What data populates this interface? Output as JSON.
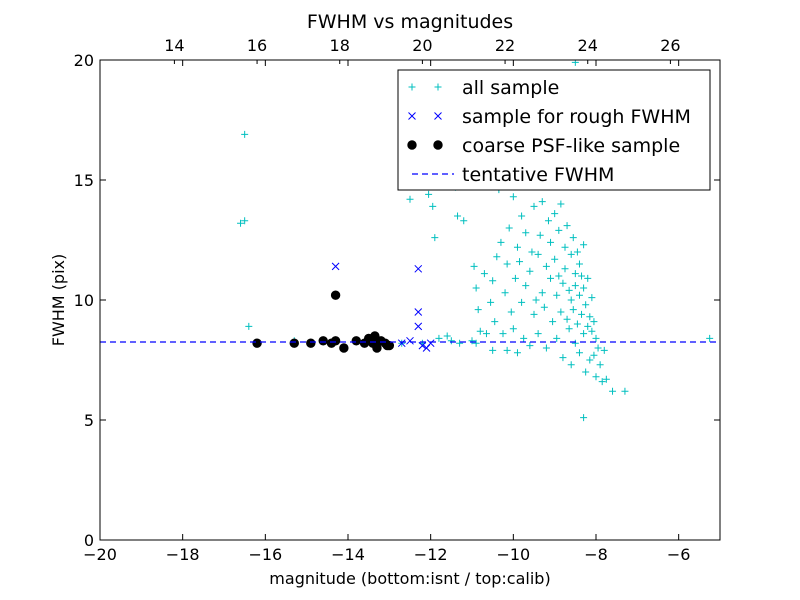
{
  "chart_data": {
    "type": "scatter",
    "title": "FWHM vs magnitudes",
    "xlabel": "magnitude (bottom:isnt / top:calib)",
    "ylabel": "FWHM (pix)",
    "xlim": [
      -20,
      -5
    ],
    "ylim": [
      0,
      20
    ],
    "x_ticks": [
      -20,
      -18,
      -16,
      -14,
      -12,
      -10,
      -8,
      -6
    ],
    "x_tick_labels": [
      "−20",
      "−18",
      "−16",
      "−14",
      "−12",
      "−10",
      "−8",
      "−6"
    ],
    "y_ticks": [
      0,
      5,
      10,
      15,
      20
    ],
    "y_tick_labels": [
      "0",
      "5",
      "10",
      "15",
      "20"
    ],
    "top_axis": {
      "ticks": [
        14,
        16,
        18,
        20,
        22,
        24,
        26
      ],
      "tick_labels": [
        "14",
        "16",
        "18",
        "20",
        "22",
        "24",
        "26"
      ],
      "offset": 32.2
    },
    "grid": false,
    "legend_position": "top-right",
    "series": [
      {
        "name": "all sample",
        "marker": "plus",
        "color": "#00bfbf",
        "points": [
          [
            -16.5,
            16.9
          ],
          [
            -16.6,
            13.2
          ],
          [
            -16.5,
            13.3
          ],
          [
            -16.4,
            8.9
          ],
          [
            -15.3,
            8.3
          ],
          [
            -14.6,
            8.3
          ],
          [
            -13.2,
            8.3
          ],
          [
            -12.7,
            8.2
          ],
          [
            -12.5,
            14.2
          ],
          [
            -12.3,
            14.9
          ],
          [
            -12.2,
            15.0
          ],
          [
            -12.05,
            14.4
          ],
          [
            -11.95,
            13.9
          ],
          [
            -11.9,
            12.6
          ],
          [
            -11.8,
            15.3
          ],
          [
            -11.6,
            8.5
          ],
          [
            -11.4,
            14.7
          ],
          [
            -11.35,
            13.5
          ],
          [
            -11.2,
            13.3
          ],
          [
            -11.15,
            15.7
          ],
          [
            -11.0,
            8.3
          ],
          [
            -10.95,
            11.4
          ],
          [
            -10.9,
            10.5
          ],
          [
            -10.85,
            9.6
          ],
          [
            -10.8,
            8.7
          ],
          [
            -10.7,
            11.1
          ],
          [
            -10.65,
            8.6
          ],
          [
            -10.55,
            9.9
          ],
          [
            -10.5,
            10.8
          ],
          [
            -10.5,
            7.9
          ],
          [
            -10.45,
            9.1
          ],
          [
            -10.4,
            11.8
          ],
          [
            -10.35,
            14.6
          ],
          [
            -10.3,
            12.4
          ],
          [
            -10.25,
            8.6
          ],
          [
            -10.2,
            10.3
          ],
          [
            -10.15,
            11.5
          ],
          [
            -10.15,
            7.9
          ],
          [
            -10.1,
            13.0
          ],
          [
            -10.05,
            9.5
          ],
          [
            -10.0,
            14.3
          ],
          [
            -10.0,
            8.8
          ],
          [
            -9.95,
            10.9
          ],
          [
            -9.9,
            12.2
          ],
          [
            -9.9,
            7.8
          ],
          [
            -9.85,
            11.6
          ],
          [
            -9.8,
            13.5
          ],
          [
            -9.8,
            9.9
          ],
          [
            -9.75,
            8.4
          ],
          [
            -9.7,
            12.8
          ],
          [
            -9.7,
            10.6
          ],
          [
            -9.65,
            14.8
          ],
          [
            -9.6,
            11.2
          ],
          [
            -9.6,
            8.1
          ],
          [
            -9.55,
            12.0
          ],
          [
            -9.5,
            9.4
          ],
          [
            -9.5,
            13.9
          ],
          [
            -9.45,
            10.0
          ],
          [
            -9.4,
            11.9
          ],
          [
            -9.4,
            8.6
          ],
          [
            -9.35,
            12.7
          ],
          [
            -9.3,
            10.3
          ],
          [
            -9.3,
            14.1
          ],
          [
            -9.25,
            9.7
          ],
          [
            -9.2,
            11.4
          ],
          [
            -9.2,
            8.0
          ],
          [
            -9.15,
            13.3
          ],
          [
            -9.1,
            10.9
          ],
          [
            -9.1,
            12.4
          ],
          [
            -9.05,
            9.1
          ],
          [
            -9.0,
            11.7
          ],
          [
            -9.0,
            13.6
          ],
          [
            -8.95,
            10.2
          ],
          [
            -8.95,
            8.4
          ],
          [
            -8.9,
            12.9
          ],
          [
            -8.9,
            11.0
          ],
          [
            -8.85,
            9.5
          ],
          [
            -8.85,
            14.0
          ],
          [
            -8.8,
            10.7
          ],
          [
            -8.8,
            7.6
          ],
          [
            -8.75,
            12.2
          ],
          [
            -8.75,
            11.3
          ],
          [
            -8.7,
            9.2
          ],
          [
            -8.7,
            13.1
          ],
          [
            -8.65,
            10.4
          ],
          [
            -8.65,
            8.8
          ],
          [
            -8.6,
            11.9
          ],
          [
            -8.6,
            10.0
          ],
          [
            -8.6,
            7.3
          ],
          [
            -8.55,
            12.6
          ],
          [
            -8.55,
            9.6
          ],
          [
            -8.5,
            11.1
          ],
          [
            -8.5,
            10.6
          ],
          [
            -8.5,
            8.2
          ],
          [
            -8.45,
            12.0
          ],
          [
            -8.45,
            9.0
          ],
          [
            -8.4,
            11.5
          ],
          [
            -8.4,
            10.2
          ],
          [
            -8.4,
            7.8
          ],
          [
            -8.35,
            9.4
          ],
          [
            -8.35,
            11.0
          ],
          [
            -8.3,
            10.5
          ],
          [
            -8.3,
            8.6
          ],
          [
            -8.3,
            12.3
          ],
          [
            -8.25,
            9.8
          ],
          [
            -8.25,
            7.0
          ],
          [
            -8.2,
            10.9
          ],
          [
            -8.2,
            8.9
          ],
          [
            -8.15,
            9.3
          ],
          [
            -8.15,
            7.5
          ],
          [
            -8.1,
            8.7
          ],
          [
            -8.1,
            10.1
          ],
          [
            -8.05,
            9.1
          ],
          [
            -8.05,
            7.7
          ],
          [
            -8.0,
            8.4
          ],
          [
            -8.0,
            6.8
          ],
          [
            -7.95,
            8.0
          ],
          [
            -7.9,
            7.3
          ],
          [
            -7.85,
            6.6
          ],
          [
            -7.8,
            7.9
          ],
          [
            -7.75,
            6.7
          ],
          [
            -7.6,
            6.2
          ],
          [
            -7.3,
            6.2
          ],
          [
            -8.3,
            5.1
          ],
          [
            -8.5,
            19.9
          ],
          [
            -5.25,
            8.4
          ],
          [
            -12.2,
            8.2
          ],
          [
            -11.8,
            8.4
          ],
          [
            -11.5,
            8.3
          ],
          [
            -11.3,
            8.2
          ],
          [
            -10.9,
            8.2
          ]
        ]
      },
      {
        "name": "sample for rough FWHM",
        "marker": "x",
        "color": "#0000ff",
        "points": [
          [
            -14.3,
            11.4
          ],
          [
            -12.3,
            11.3
          ],
          [
            -12.3,
            9.5
          ],
          [
            -12.3,
            8.9
          ],
          [
            -12.5,
            8.3
          ],
          [
            -12.2,
            8.1
          ],
          [
            -12.1,
            8.0
          ],
          [
            -12.0,
            8.2
          ],
          [
            -12.7,
            8.2
          ]
        ]
      },
      {
        "name": "coarse PSF-like sample",
        "marker": "circle",
        "color": "#000000",
        "points": [
          [
            -16.2,
            8.2
          ],
          [
            -15.3,
            8.2
          ],
          [
            -14.9,
            8.2
          ],
          [
            -14.6,
            8.3
          ],
          [
            -14.4,
            8.2
          ],
          [
            -14.3,
            8.3
          ],
          [
            -14.3,
            10.2
          ],
          [
            -14.1,
            8.0
          ],
          [
            -13.8,
            8.3
          ],
          [
            -13.6,
            8.2
          ],
          [
            -13.5,
            8.4
          ],
          [
            -13.4,
            8.2
          ],
          [
            -13.35,
            8.5
          ],
          [
            -13.3,
            8.0
          ],
          [
            -13.2,
            8.3
          ],
          [
            -13.1,
            8.2
          ],
          [
            -13.05,
            8.1
          ],
          [
            -13.0,
            8.1
          ]
        ]
      },
      {
        "name": "tentative FWHM",
        "marker": "dashed-line",
        "color": "#0000ff",
        "y": 8.25
      }
    ]
  }
}
